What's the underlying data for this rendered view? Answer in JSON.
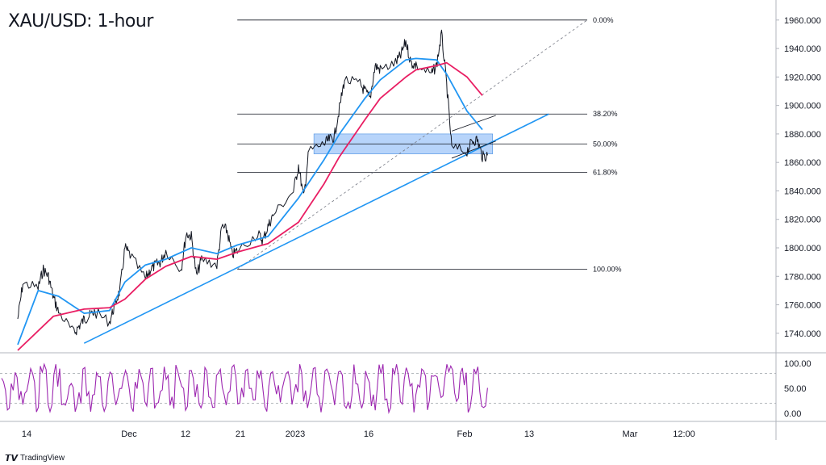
{
  "brand": {
    "logo_icon": "tradingview-logo-icon",
    "name": "TradingView"
  },
  "chart_data": {
    "type": "line",
    "title": "XAU/USD: 1-hour",
    "xlabel": "",
    "ylabel": "",
    "x_ticks": [
      "14",
      "Dec",
      "12",
      "21",
      "2023",
      "16",
      "Feb",
      "13",
      "Mar",
      "12:00"
    ],
    "y_ticks": [
      "1740.000",
      "1760.000",
      "1780.000",
      "1800.000",
      "1820.000",
      "1840.000",
      "1860.000",
      "1880.000",
      "1900.000",
      "1920.000",
      "1940.000",
      "1960.000"
    ],
    "ylim": [
      1728,
      1965
    ],
    "grid": false,
    "series": [
      {
        "role": "price",
        "color": "#131722",
        "points": [
          [
            "2022-11-10",
            1750
          ],
          [
            "2022-11-11",
            1775
          ],
          [
            "2022-11-14",
            1772
          ],
          [
            "2022-11-15",
            1785
          ],
          [
            "2022-11-16",
            1780
          ],
          [
            "2022-11-17",
            1765
          ],
          [
            "2022-11-18",
            1755
          ],
          [
            "2022-11-21",
            1740
          ],
          [
            "2022-11-22",
            1745
          ],
          [
            "2022-11-23",
            1750
          ],
          [
            "2022-11-24",
            1752
          ],
          [
            "2022-11-25",
            1755
          ],
          [
            "2022-11-28",
            1748
          ],
          [
            "2022-11-29",
            1760
          ],
          [
            "2022-11-30",
            1770
          ],
          [
            "2022-12-01",
            1800
          ],
          [
            "2022-12-02",
            1795
          ],
          [
            "2022-12-05",
            1778
          ],
          [
            "2022-12-06",
            1785
          ],
          [
            "2022-12-07",
            1788
          ],
          [
            "2022-12-08",
            1790
          ],
          [
            "2022-12-09",
            1798
          ],
          [
            "2022-12-12",
            1785
          ],
          [
            "2022-12-13",
            1810
          ],
          [
            "2022-12-14",
            1808
          ],
          [
            "2022-12-15",
            1780
          ],
          [
            "2022-12-16",
            1792
          ],
          [
            "2022-12-19",
            1788
          ],
          [
            "2022-12-20",
            1815
          ],
          [
            "2022-12-21",
            1812
          ],
          [
            "2022-12-22",
            1795
          ],
          [
            "2022-12-23",
            1798
          ],
          [
            "2022-12-27",
            1810
          ],
          [
            "2022-12-28",
            1805
          ],
          [
            "2022-12-29",
            1815
          ],
          [
            "2022-12-30",
            1823
          ],
          [
            "2023-01-03",
            1840
          ],
          [
            "2023-01-04",
            1858
          ],
          [
            "2023-01-05",
            1835
          ],
          [
            "2023-01-06",
            1868
          ],
          [
            "2023-01-09",
            1873
          ],
          [
            "2023-01-10",
            1876
          ],
          [
            "2023-01-11",
            1878
          ],
          [
            "2023-01-12",
            1898
          ],
          [
            "2023-01-13",
            1918
          ],
          [
            "2023-01-16",
            1915
          ],
          [
            "2023-01-17",
            1910
          ],
          [
            "2023-01-18",
            1905
          ],
          [
            "2023-01-19",
            1928
          ],
          [
            "2023-01-20",
            1925
          ],
          [
            "2023-01-23",
            1930
          ],
          [
            "2023-01-24",
            1935
          ],
          [
            "2023-01-25",
            1945
          ],
          [
            "2023-01-26",
            1930
          ],
          [
            "2023-01-27",
            1928
          ],
          [
            "2023-01-30",
            1922
          ],
          [
            "2023-01-31",
            1928
          ],
          [
            "2023-02-01",
            1950
          ],
          [
            "2023-02-02",
            1915
          ],
          [
            "2023-02-03",
            1870
          ],
          [
            "2023-02-06",
            1868
          ],
          [
            "2023-02-07",
            1875
          ],
          [
            "2023-02-08",
            1876
          ],
          [
            "2023-02-09",
            1864
          ],
          [
            "2023-02-10",
            1865
          ]
        ]
      },
      {
        "role": "fast-ma",
        "color": "#2196f3",
        "points": [
          [
            "2022-11-10",
            1732
          ],
          [
            "2022-11-14",
            1770
          ],
          [
            "2022-11-18",
            1766
          ],
          [
            "2022-11-23",
            1754
          ],
          [
            "2022-11-28",
            1756
          ],
          [
            "2022-12-01",
            1776
          ],
          [
            "2022-12-05",
            1788
          ],
          [
            "2022-12-09",
            1792
          ],
          [
            "2022-12-14",
            1800
          ],
          [
            "2022-12-19",
            1796
          ],
          [
            "2022-12-23",
            1802
          ],
          [
            "2022-12-29",
            1808
          ],
          [
            "2023-01-04",
            1835
          ],
          [
            "2023-01-09",
            1862
          ],
          [
            "2023-01-12",
            1880
          ],
          [
            "2023-01-17",
            1905
          ],
          [
            "2023-01-20",
            1918
          ],
          [
            "2023-01-25",
            1932
          ],
          [
            "2023-01-27",
            1933
          ],
          [
            "2023-01-31",
            1932
          ],
          [
            "2023-02-02",
            1922
          ],
          [
            "2023-02-06",
            1896
          ],
          [
            "2023-02-09",
            1883
          ]
        ]
      },
      {
        "role": "slow-ma",
        "color": "#e91e63",
        "points": [
          [
            "2022-11-10",
            1728
          ],
          [
            "2022-11-17",
            1752
          ],
          [
            "2022-11-23",
            1757
          ],
          [
            "2022-11-28",
            1758
          ],
          [
            "2022-12-01",
            1764
          ],
          [
            "2022-12-05",
            1778
          ],
          [
            "2022-12-09",
            1787
          ],
          [
            "2022-12-14",
            1794
          ],
          [
            "2022-12-19",
            1792
          ],
          [
            "2022-12-23",
            1797
          ],
          [
            "2022-12-29",
            1803
          ],
          [
            "2023-01-04",
            1818
          ],
          [
            "2023-01-09",
            1845
          ],
          [
            "2023-01-12",
            1864
          ],
          [
            "2023-01-17",
            1890
          ],
          [
            "2023-01-20",
            1905
          ],
          [
            "2023-01-25",
            1920
          ],
          [
            "2023-01-27",
            1925
          ],
          [
            "2023-01-31",
            1928
          ],
          [
            "2023-02-02",
            1930
          ],
          [
            "2023-02-06",
            1920
          ],
          [
            "2023-02-09",
            1907
          ]
        ]
      }
    ],
    "fibonacci": [
      {
        "label": "0.00%",
        "value": 1960
      },
      {
        "label": "38.20%",
        "value": 1894
      },
      {
        "label": "50.00%",
        "value": 1873
      },
      {
        "label": "61.80%",
        "value": 1853
      },
      {
        "label": "100.00%",
        "value": 1785
      }
    ],
    "support_zone": {
      "from": 1866,
      "to": 1880,
      "color": "#9fc5f8"
    },
    "trendline": {
      "start": [
        "2022-11-23",
        1733
      ],
      "end": [
        "2023-02-22",
        1894
      ],
      "color": "#2196f3"
    },
    "stochastic": {
      "y_ticks": [
        "100.00",
        "50.00",
        "0.00"
      ],
      "ylim": [
        0,
        100
      ],
      "levels": [
        20,
        80
      ],
      "color": "#9c27b0"
    }
  }
}
